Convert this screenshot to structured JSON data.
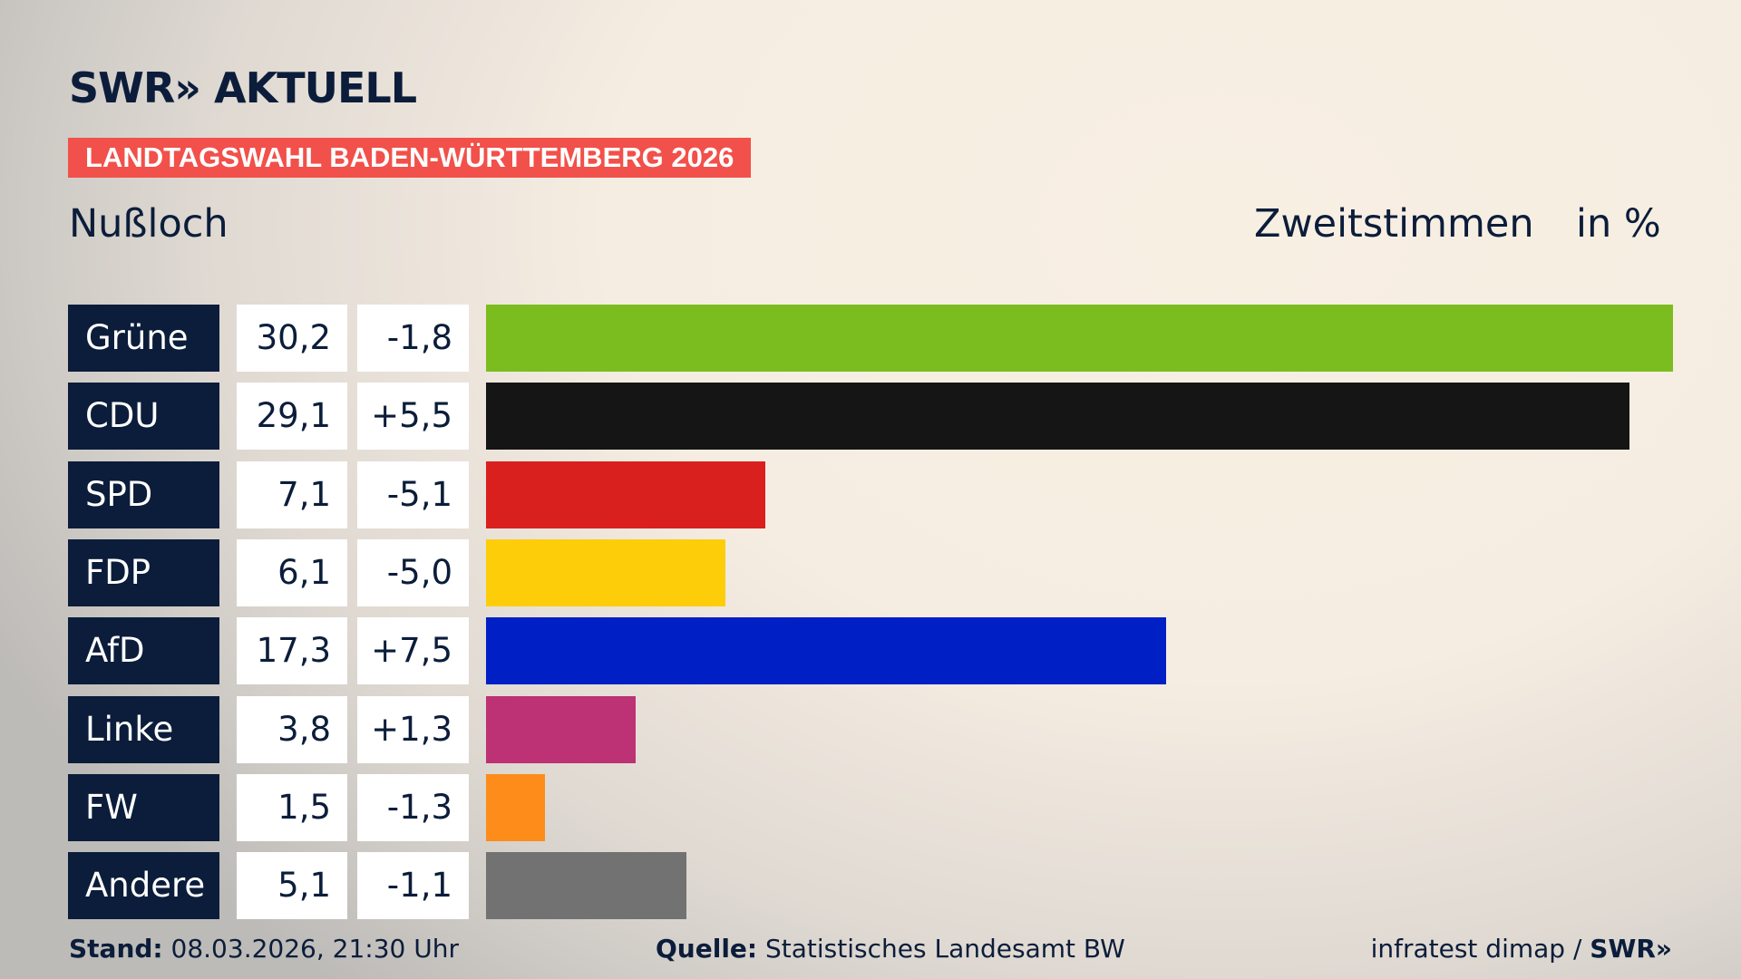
{
  "header": {
    "logo": "SWR» AKTUELL",
    "banner": "LANDTAGSWAHL BADEN-WÜRTTEMBERG 2026",
    "place": "Nußloch",
    "metric": "Zweitstimmen",
    "unit": "in %"
  },
  "chart_data": {
    "type": "bar",
    "orientation": "horizontal",
    "categories": [
      "Grüne",
      "CDU",
      "SPD",
      "FDP",
      "AfD",
      "Linke",
      "FW",
      "Andere"
    ],
    "values": [
      30.2,
      29.1,
      7.1,
      6.1,
      17.3,
      3.8,
      1.5,
      5.1
    ],
    "value_labels": [
      "30,2",
      "29,1",
      "7,1",
      "6,1",
      "17,3",
      "3,8",
      "1,5",
      "5,1"
    ],
    "diff_labels": [
      "-1,8",
      "+5,5",
      "-5,1",
      "-5,0",
      "+7,5",
      "+1,3",
      "-1,3",
      "-1,1"
    ],
    "diffs": [
      -1.8,
      5.5,
      -5.1,
      -5.0,
      7.5,
      1.3,
      -1.3,
      -1.1
    ],
    "colors": [
      "#7bbd1f",
      "#151515",
      "#d9201e",
      "#fdcd0a",
      "#0020c5",
      "#bd3175",
      "#fe8c1a",
      "#727272"
    ]
  },
  "footer": {
    "stand_label": "Stand:",
    "stand": "08.03.2026, 21:30 Uhr",
    "source_label": "Quelle:",
    "source": "Statistisches Landesamt BW",
    "credit": "infratest dimap / ",
    "credit_brand": "SWR»"
  }
}
